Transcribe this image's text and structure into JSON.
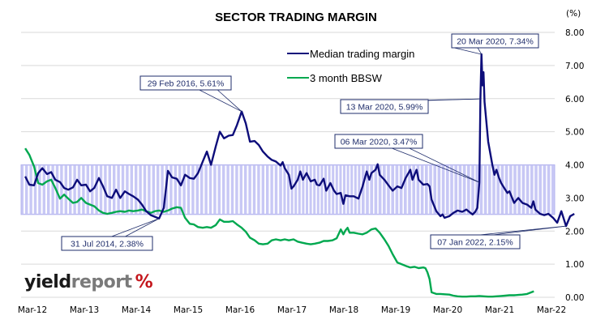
{
  "chart_data": {
    "type": "line",
    "title": "SECTOR TRADING MARGIN",
    "ylabel": "(%)",
    "xlabel": "",
    "ylim": [
      0,
      8
    ],
    "yticks": [
      "0.00",
      "1.00",
      "2.00",
      "3.00",
      "4.00",
      "5.00",
      "6.00",
      "7.00",
      "8.00"
    ],
    "xlim": [
      2012.0,
      2022.25
    ],
    "xticks": [
      {
        "label": "Mar-12",
        "x": 2012.17
      },
      {
        "label": "Mar-13",
        "x": 2013.17
      },
      {
        "label": "Mar-14",
        "x": 2014.17
      },
      {
        "label": "Mar-15",
        "x": 2015.17
      },
      {
        "label": "Mar-16",
        "x": 2016.17
      },
      {
        "label": "Mar-17",
        "x": 2017.17
      },
      {
        "label": "Mar-18",
        "x": 2018.17
      },
      {
        "label": "Mar-19",
        "x": 2019.17
      },
      {
        "label": "Mar-20",
        "x": 2020.17
      },
      {
        "label": "Mar-21",
        "x": 2021.17
      },
      {
        "label": "Mar-22",
        "x": 2022.17
      }
    ],
    "grid": true,
    "legend_position": "top-center",
    "band": {
      "range": [
        2.5,
        4.0
      ],
      "color": "#c8c8f5",
      "description": "shaded band between 2.50% and 4.00%"
    },
    "series": [
      {
        "name": "Median trading margin",
        "color": "#0d0d7a",
        "points": [
          [
            2012.0,
            3.65
          ],
          [
            2012.08,
            3.4
          ],
          [
            2012.17,
            3.38
          ],
          [
            2012.25,
            3.75
          ],
          [
            2012.33,
            3.9
          ],
          [
            2012.42,
            3.72
          ],
          [
            2012.5,
            3.78
          ],
          [
            2012.58,
            3.55
          ],
          [
            2012.67,
            3.48
          ],
          [
            2012.75,
            3.3
          ],
          [
            2012.83,
            3.25
          ],
          [
            2012.92,
            3.32
          ],
          [
            2013.0,
            3.55
          ],
          [
            2013.08,
            3.38
          ],
          [
            2013.17,
            3.4
          ],
          [
            2013.25,
            3.2
          ],
          [
            2013.33,
            3.3
          ],
          [
            2013.42,
            3.6
          ],
          [
            2013.5,
            3.35
          ],
          [
            2013.58,
            3.05
          ],
          [
            2013.67,
            3.0
          ],
          [
            2013.75,
            3.25
          ],
          [
            2013.83,
            3.0
          ],
          [
            2013.92,
            3.2
          ],
          [
            2014.0,
            3.12
          ],
          [
            2014.08,
            3.05
          ],
          [
            2014.17,
            2.95
          ],
          [
            2014.25,
            2.8
          ],
          [
            2014.33,
            2.6
          ],
          [
            2014.42,
            2.48
          ],
          [
            2014.58,
            2.38
          ],
          [
            2014.67,
            2.7
          ],
          [
            2014.75,
            3.82
          ],
          [
            2014.83,
            3.62
          ],
          [
            2014.92,
            3.58
          ],
          [
            2015.0,
            3.38
          ],
          [
            2015.08,
            3.7
          ],
          [
            2015.17,
            3.6
          ],
          [
            2015.25,
            3.58
          ],
          [
            2015.33,
            3.75
          ],
          [
            2015.42,
            4.1
          ],
          [
            2015.5,
            4.4
          ],
          [
            2015.58,
            4.0
          ],
          [
            2015.67,
            4.55
          ],
          [
            2015.75,
            5.0
          ],
          [
            2015.83,
            4.8
          ],
          [
            2015.92,
            4.88
          ],
          [
            2016.0,
            4.9
          ],
          [
            2016.08,
            5.2
          ],
          [
            2016.17,
            5.61
          ],
          [
            2016.25,
            5.25
          ],
          [
            2016.33,
            4.7
          ],
          [
            2016.42,
            4.72
          ],
          [
            2016.5,
            4.6
          ],
          [
            2016.58,
            4.4
          ],
          [
            2016.67,
            4.25
          ],
          [
            2016.75,
            4.15
          ],
          [
            2016.83,
            4.1
          ],
          [
            2016.92,
            3.98
          ],
          [
            2016.96,
            4.08
          ],
          [
            2017.0,
            3.9
          ],
          [
            2017.08,
            3.7
          ],
          [
            2017.13,
            3.28
          ],
          [
            2017.17,
            3.35
          ],
          [
            2017.25,
            3.55
          ],
          [
            2017.3,
            3.8
          ],
          [
            2017.35,
            3.55
          ],
          [
            2017.42,
            3.75
          ],
          [
            2017.5,
            3.5
          ],
          [
            2017.58,
            3.55
          ],
          [
            2017.62,
            3.4
          ],
          [
            2017.67,
            3.38
          ],
          [
            2017.75,
            3.58
          ],
          [
            2017.8,
            3.22
          ],
          [
            2017.88,
            3.45
          ],
          [
            2017.95,
            3.22
          ],
          [
            2018.0,
            3.12
          ],
          [
            2018.08,
            3.15
          ],
          [
            2018.13,
            2.82
          ],
          [
            2018.17,
            3.08
          ],
          [
            2018.25,
            3.05
          ],
          [
            2018.33,
            3.05
          ],
          [
            2018.42,
            2.98
          ],
          [
            2018.5,
            3.35
          ],
          [
            2018.58,
            3.8
          ],
          [
            2018.63,
            3.55
          ],
          [
            2018.67,
            3.75
          ],
          [
            2018.75,
            3.85
          ],
          [
            2018.79,
            4.02
          ],
          [
            2018.83,
            3.7
          ],
          [
            2018.92,
            3.55
          ],
          [
            2019.0,
            3.38
          ],
          [
            2019.08,
            3.22
          ],
          [
            2019.17,
            3.35
          ],
          [
            2019.25,
            3.3
          ],
          [
            2019.33,
            3.6
          ],
          [
            2019.42,
            3.85
          ],
          [
            2019.46,
            3.55
          ],
          [
            2019.5,
            3.7
          ],
          [
            2019.54,
            3.85
          ],
          [
            2019.58,
            3.55
          ],
          [
            2019.67,
            3.4
          ],
          [
            2019.75,
            3.42
          ],
          [
            2019.79,
            3.35
          ],
          [
            2019.83,
            2.95
          ],
          [
            2019.92,
            2.6
          ],
          [
            2020.0,
            2.45
          ],
          [
            2020.04,
            2.5
          ],
          [
            2020.08,
            2.4
          ],
          [
            2020.17,
            2.45
          ],
          [
            2020.25,
            2.55
          ],
          [
            2020.33,
            2.62
          ],
          [
            2020.42,
            2.58
          ],
          [
            2020.5,
            2.65
          ],
          [
            2020.58,
            2.55
          ],
          [
            2020.62,
            2.5
          ],
          [
            2020.67,
            2.58
          ],
          [
            2020.71,
            2.7
          ],
          [
            2020.75,
            3.47
          ],
          [
            2020.77,
            5.99
          ],
          [
            2020.79,
            7.34
          ],
          [
            2020.81,
            6.4
          ],
          [
            2020.83,
            6.8
          ],
          [
            2020.85,
            5.9
          ],
          [
            2020.92,
            4.7
          ],
          [
            2021.0,
            4.0
          ],
          [
            2021.04,
            3.7
          ],
          [
            2021.08,
            3.85
          ],
          [
            2021.13,
            3.6
          ],
          [
            2021.17,
            3.45
          ],
          [
            2021.25,
            3.25
          ],
          [
            2021.29,
            3.15
          ],
          [
            2021.33,
            3.2
          ],
          [
            2021.42,
            2.85
          ],
          [
            2021.5,
            3.0
          ],
          [
            2021.58,
            2.85
          ],
          [
            2021.67,
            2.8
          ],
          [
            2021.75,
            2.7
          ],
          [
            2021.79,
            2.9
          ],
          [
            2021.83,
            2.65
          ],
          [
            2021.92,
            2.52
          ],
          [
            2022.0,
            2.48
          ],
          [
            2022.08,
            2.52
          ],
          [
            2022.17,
            2.4
          ],
          [
            2022.25,
            2.25
          ],
          [
            2022.33,
            2.6
          ],
          [
            2022.42,
            2.15
          ],
          [
            2022.5,
            2.45
          ],
          [
            2022.58,
            2.52
          ]
        ]
      },
      {
        "name": "3 month BBSW",
        "color": "#00a84f",
        "points": [
          [
            2012.0,
            4.5
          ],
          [
            2012.08,
            4.3
          ],
          [
            2012.17,
            3.95
          ],
          [
            2012.25,
            3.45
          ],
          [
            2012.33,
            3.4
          ],
          [
            2012.42,
            3.5
          ],
          [
            2012.5,
            3.55
          ],
          [
            2012.58,
            3.3
          ],
          [
            2012.67,
            2.98
          ],
          [
            2012.75,
            3.1
          ],
          [
            2012.83,
            2.98
          ],
          [
            2012.92,
            2.85
          ],
          [
            2013.0,
            2.88
          ],
          [
            2013.08,
            3.0
          ],
          [
            2013.17,
            2.85
          ],
          [
            2013.25,
            2.8
          ],
          [
            2013.33,
            2.75
          ],
          [
            2013.42,
            2.62
          ],
          [
            2013.5,
            2.55
          ],
          [
            2013.58,
            2.52
          ],
          [
            2013.67,
            2.55
          ],
          [
            2013.75,
            2.58
          ],
          [
            2013.83,
            2.6
          ],
          [
            2013.92,
            2.58
          ],
          [
            2014.0,
            2.62
          ],
          [
            2014.08,
            2.6
          ],
          [
            2014.17,
            2.62
          ],
          [
            2014.25,
            2.65
          ],
          [
            2014.33,
            2.6
          ],
          [
            2014.42,
            2.55
          ],
          [
            2014.5,
            2.6
          ],
          [
            2014.58,
            2.62
          ],
          [
            2014.67,
            2.58
          ],
          [
            2014.75,
            2.62
          ],
          [
            2014.83,
            2.68
          ],
          [
            2014.92,
            2.72
          ],
          [
            2015.0,
            2.7
          ],
          [
            2015.08,
            2.4
          ],
          [
            2015.17,
            2.22
          ],
          [
            2015.25,
            2.2
          ],
          [
            2015.33,
            2.12
          ],
          [
            2015.42,
            2.1
          ],
          [
            2015.5,
            2.12
          ],
          [
            2015.58,
            2.1
          ],
          [
            2015.67,
            2.18
          ],
          [
            2015.75,
            2.35
          ],
          [
            2015.83,
            2.28
          ],
          [
            2015.92,
            2.28
          ],
          [
            2016.0,
            2.3
          ],
          [
            2016.08,
            2.2
          ],
          [
            2016.17,
            2.1
          ],
          [
            2016.25,
            1.98
          ],
          [
            2016.33,
            1.8
          ],
          [
            2016.42,
            1.72
          ],
          [
            2016.5,
            1.62
          ],
          [
            2016.58,
            1.6
          ],
          [
            2016.67,
            1.62
          ],
          [
            2016.75,
            1.72
          ],
          [
            2016.83,
            1.75
          ],
          [
            2016.92,
            1.72
          ],
          [
            2017.0,
            1.75
          ],
          [
            2017.08,
            1.72
          ],
          [
            2017.17,
            1.75
          ],
          [
            2017.25,
            1.68
          ],
          [
            2017.33,
            1.65
          ],
          [
            2017.42,
            1.62
          ],
          [
            2017.5,
            1.6
          ],
          [
            2017.58,
            1.62
          ],
          [
            2017.67,
            1.65
          ],
          [
            2017.75,
            1.7
          ],
          [
            2017.83,
            1.7
          ],
          [
            2017.92,
            1.72
          ],
          [
            2018.0,
            1.78
          ],
          [
            2018.08,
            2.05
          ],
          [
            2018.13,
            1.9
          ],
          [
            2018.17,
            2.02
          ],
          [
            2018.21,
            2.1
          ],
          [
            2018.25,
            1.95
          ],
          [
            2018.33,
            1.95
          ],
          [
            2018.42,
            1.92
          ],
          [
            2018.5,
            1.9
          ],
          [
            2018.58,
            1.95
          ],
          [
            2018.67,
            2.05
          ],
          [
            2018.75,
            2.08
          ],
          [
            2018.83,
            1.95
          ],
          [
            2018.92,
            1.75
          ],
          [
            2019.0,
            1.55
          ],
          [
            2019.08,
            1.3
          ],
          [
            2019.17,
            1.05
          ],
          [
            2019.25,
            1.0
          ],
          [
            2019.33,
            0.95
          ],
          [
            2019.42,
            0.9
          ],
          [
            2019.5,
            0.92
          ],
          [
            2019.58,
            0.88
          ],
          [
            2019.67,
            0.9
          ],
          [
            2019.71,
            0.88
          ],
          [
            2019.75,
            0.75
          ],
          [
            2019.79,
            0.55
          ],
          [
            2019.83,
            0.15
          ],
          [
            2019.92,
            0.1
          ],
          [
            2020.0,
            0.1
          ],
          [
            2020.08,
            0.09
          ],
          [
            2020.17,
            0.08
          ],
          [
            2020.25,
            0.05
          ],
          [
            2020.33,
            0.03
          ],
          [
            2020.42,
            0.02
          ],
          [
            2020.5,
            0.02
          ],
          [
            2020.58,
            0.03
          ],
          [
            2020.67,
            0.03
          ],
          [
            2020.75,
            0.04
          ],
          [
            2020.83,
            0.03
          ],
          [
            2020.92,
            0.02
          ],
          [
            2021.0,
            0.02
          ],
          [
            2021.08,
            0.03
          ],
          [
            2021.17,
            0.04
          ],
          [
            2021.25,
            0.05
          ],
          [
            2021.33,
            0.06
          ],
          [
            2021.42,
            0.06
          ],
          [
            2021.5,
            0.07
          ],
          [
            2021.58,
            0.08
          ],
          [
            2021.67,
            0.1
          ],
          [
            2021.75,
            0.15
          ],
          [
            2021.8,
            0.18
          ]
        ]
      }
    ],
    "annotations": [
      {
        "text": "31 Jul 2014,  2.38%",
        "x": 2014.58,
        "y": 2.38,
        "anchor": "below"
      },
      {
        "text": "29 Feb 2016,  5.61%",
        "x": 2016.17,
        "y": 5.61,
        "anchor": "above"
      },
      {
        "text": "06 Mar 2020,  3.47%",
        "x": 2020.75,
        "y": 3.47,
        "anchor": "above"
      },
      {
        "text": "13 Mar 2020,  5.99%",
        "x": 2020.77,
        "y": 5.99,
        "anchor": "left"
      },
      {
        "text": "20 Mar 2020,  7.34%",
        "x": 2020.79,
        "y": 7.34,
        "anchor": "above-right"
      },
      {
        "text": "07 Jan 2022,  2.15%",
        "x": 2022.42,
        "y": 2.15,
        "anchor": "below"
      }
    ]
  },
  "logo": {
    "part1": "yield",
    "part2": "report",
    "symbol": "%"
  }
}
